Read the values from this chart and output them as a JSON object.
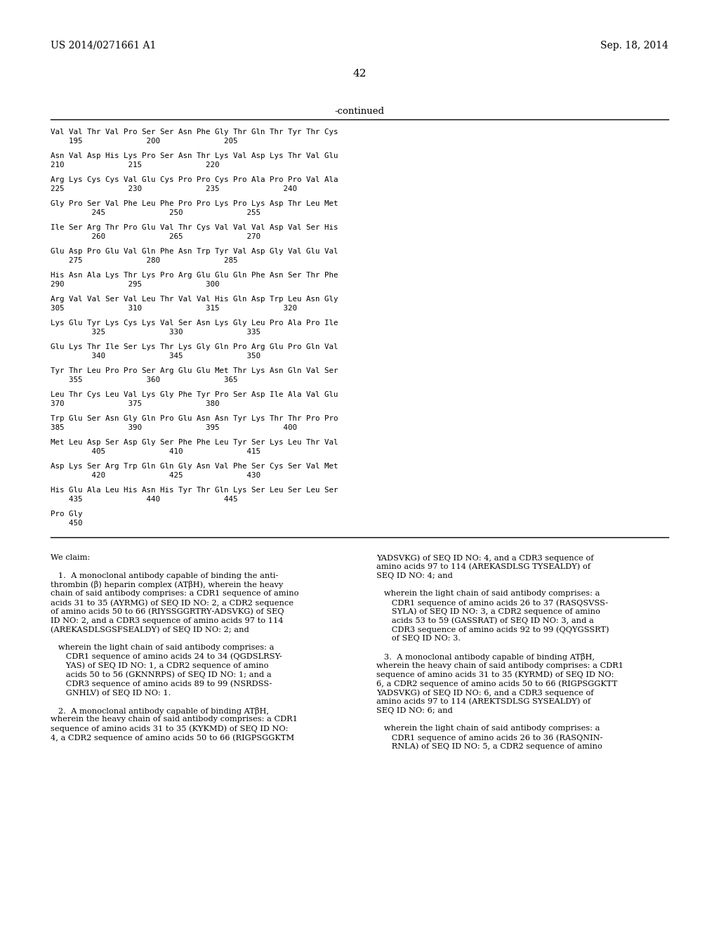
{
  "bg_color": "#ffffff",
  "header_left": "US 2014/0271661 A1",
  "header_right": "Sep. 18, 2014",
  "page_number": "42",
  "continued_label": "-continued",
  "seq_data": [
    [
      "Val Val Thr Val Pro Ser Ser Asn Phe Gly Thr Gln Thr Tyr Thr Cys",
      "    195              200              205"
    ],
    [
      "Asn Val Asp His Lys Pro Ser Asn Thr Lys Val Asp Lys Thr Val Glu",
      "210              215              220"
    ],
    [
      "Arg Lys Cys Cys Val Glu Cys Pro Pro Cys Pro Ala Pro Pro Val Ala",
      "225              230              235              240"
    ],
    [
      "Gly Pro Ser Val Phe Leu Phe Pro Pro Lys Pro Lys Asp Thr Leu Met",
      "         245              250              255"
    ],
    [
      "Ile Ser Arg Thr Pro Glu Val Thr Cys Val Val Val Asp Val Ser His",
      "         260              265              270"
    ],
    [
      "Glu Asp Pro Glu Val Gln Phe Asn Trp Tyr Val Asp Gly Val Glu Val",
      "    275              280              285"
    ],
    [
      "His Asn Ala Lys Thr Lys Pro Arg Glu Glu Gln Phe Asn Ser Thr Phe",
      "290              295              300"
    ],
    [
      "Arg Val Val Ser Val Leu Thr Val Val His Gln Asp Trp Leu Asn Gly",
      "305              310              315              320"
    ],
    [
      "Lys Glu Tyr Lys Cys Lys Val Ser Asn Lys Gly Leu Pro Ala Pro Ile",
      "         325              330              335"
    ],
    [
      "Glu Lys Thr Ile Ser Lys Thr Lys Gly Gln Pro Arg Glu Pro Gln Val",
      "         340              345              350"
    ],
    [
      "Tyr Thr Leu Pro Pro Ser Arg Glu Glu Met Thr Lys Asn Gln Val Ser",
      "    355              360              365"
    ],
    [
      "Leu Thr Cys Leu Val Lys Gly Phe Tyr Pro Ser Asp Ile Ala Val Glu",
      "370              375              380"
    ],
    [
      "Trp Glu Ser Asn Gly Gln Pro Glu Asn Asn Tyr Lys Thr Thr Pro Pro",
      "385              390              395              400"
    ],
    [
      "Met Leu Asp Ser Asp Gly Ser Phe Phe Leu Tyr Ser Lys Leu Thr Val",
      "         405              410              415"
    ],
    [
      "Asp Lys Ser Arg Trp Gln Gln Gly Asn Val Phe Ser Cys Ser Val Met",
      "         420              425              430"
    ],
    [
      "His Glu Ala Leu His Asn His Tyr Thr Gln Lys Ser Leu Ser Leu Ser",
      "    435              440              445"
    ],
    [
      "Pro Gly",
      "    450"
    ]
  ],
  "left_claims": [
    "We claim:",
    "",
    "   1.  A monoclonal antibody capable of binding the anti-",
    "thrombin (β) heparin complex (ATβH), wherein the heavy",
    "chain of said antibody comprises: a CDR1 sequence of amino",
    "acids 31 to 35 (AYRMG) of SEQ ID NO: 2, a CDR2 sequence",
    "of amino acids 50 to 66 (RIYSSGGRTRY­ADSVKG) of SEQ",
    "ID NO: 2, and a CDR3 sequence of amino acids 97 to 114",
    "(AREKASDLSGSFSEALDY) of SEQ ID NO: 2; and",
    "",
    "   wherein the light chain of said antibody comprises: a",
    "      CDR1 sequence of amino acids 24 to 34 (QGDSLRSY-",
    "      YAS) of SEQ ID NO: 1, a CDR2 sequence of amino",
    "      acids 50 to 56 (GKNNRPS) of SEQ ID NO: 1; and a",
    "      CDR3 sequence of amino acids 89 to 99 (NSRDSS-",
    "      GNHLV) of SEQ ID NO: 1.",
    "",
    "   2.  A monoclonal antibody capable of binding ATβH,",
    "wherein the heavy chain of said antibody comprises: a CDR1",
    "sequence of amino acids 31 to 35 (KYKMD) of SEQ ID NO:",
    "4, a CDR2 sequence of amino acids 50 to 66 (RIGPSGGKTM"
  ],
  "right_claims": [
    "YADSVKG) of SEQ ID NO: 4, and a CDR3 sequence of",
    "amino acids 97 to 114 (AREKASDLSG TYSEALDY) of",
    "SEQ ID NO: 4; and",
    "",
    "   wherein the light chain of said antibody comprises: a",
    "      CDR1 sequence of amino acids 26 to 37 (RASQSVSS-",
    "      SYLA) of SEQ ID NO: 3, a CDR2 sequence of amino",
    "      acids 53 to 59 (GASSRAT) of SEQ ID NO: 3, and a",
    "      CDR3 sequence of amino acids 92 to 99 (QQYGSSRT)",
    "      of SEQ ID NO: 3.",
    "",
    "   3.  A monoclonal antibody capable of binding ATβH,",
    "wherein the heavy chain of said antibody comprises: a CDR1",
    "sequence of amino acids 31 to 35 (KYRMD) of SEQ ID NO:",
    "6, a CDR2 sequence of amino acids 50 to 66 (RIGPSGGKTT",
    "YADSVKG) of SEQ ID NO: 6, and a CDR3 sequence of",
    "amino acids 97 to 114 (AREKTSDLSG SYSEALDY) of",
    "SEQ ID NO: 6; and",
    "",
    "   wherein the light chain of said antibody comprises: a",
    "      CDR1 sequence of amino acids 26 to 36 (RASQNIN-",
    "      RNLA) of SEQ ID NO: 5, a CDR2 sequence of amino"
  ]
}
